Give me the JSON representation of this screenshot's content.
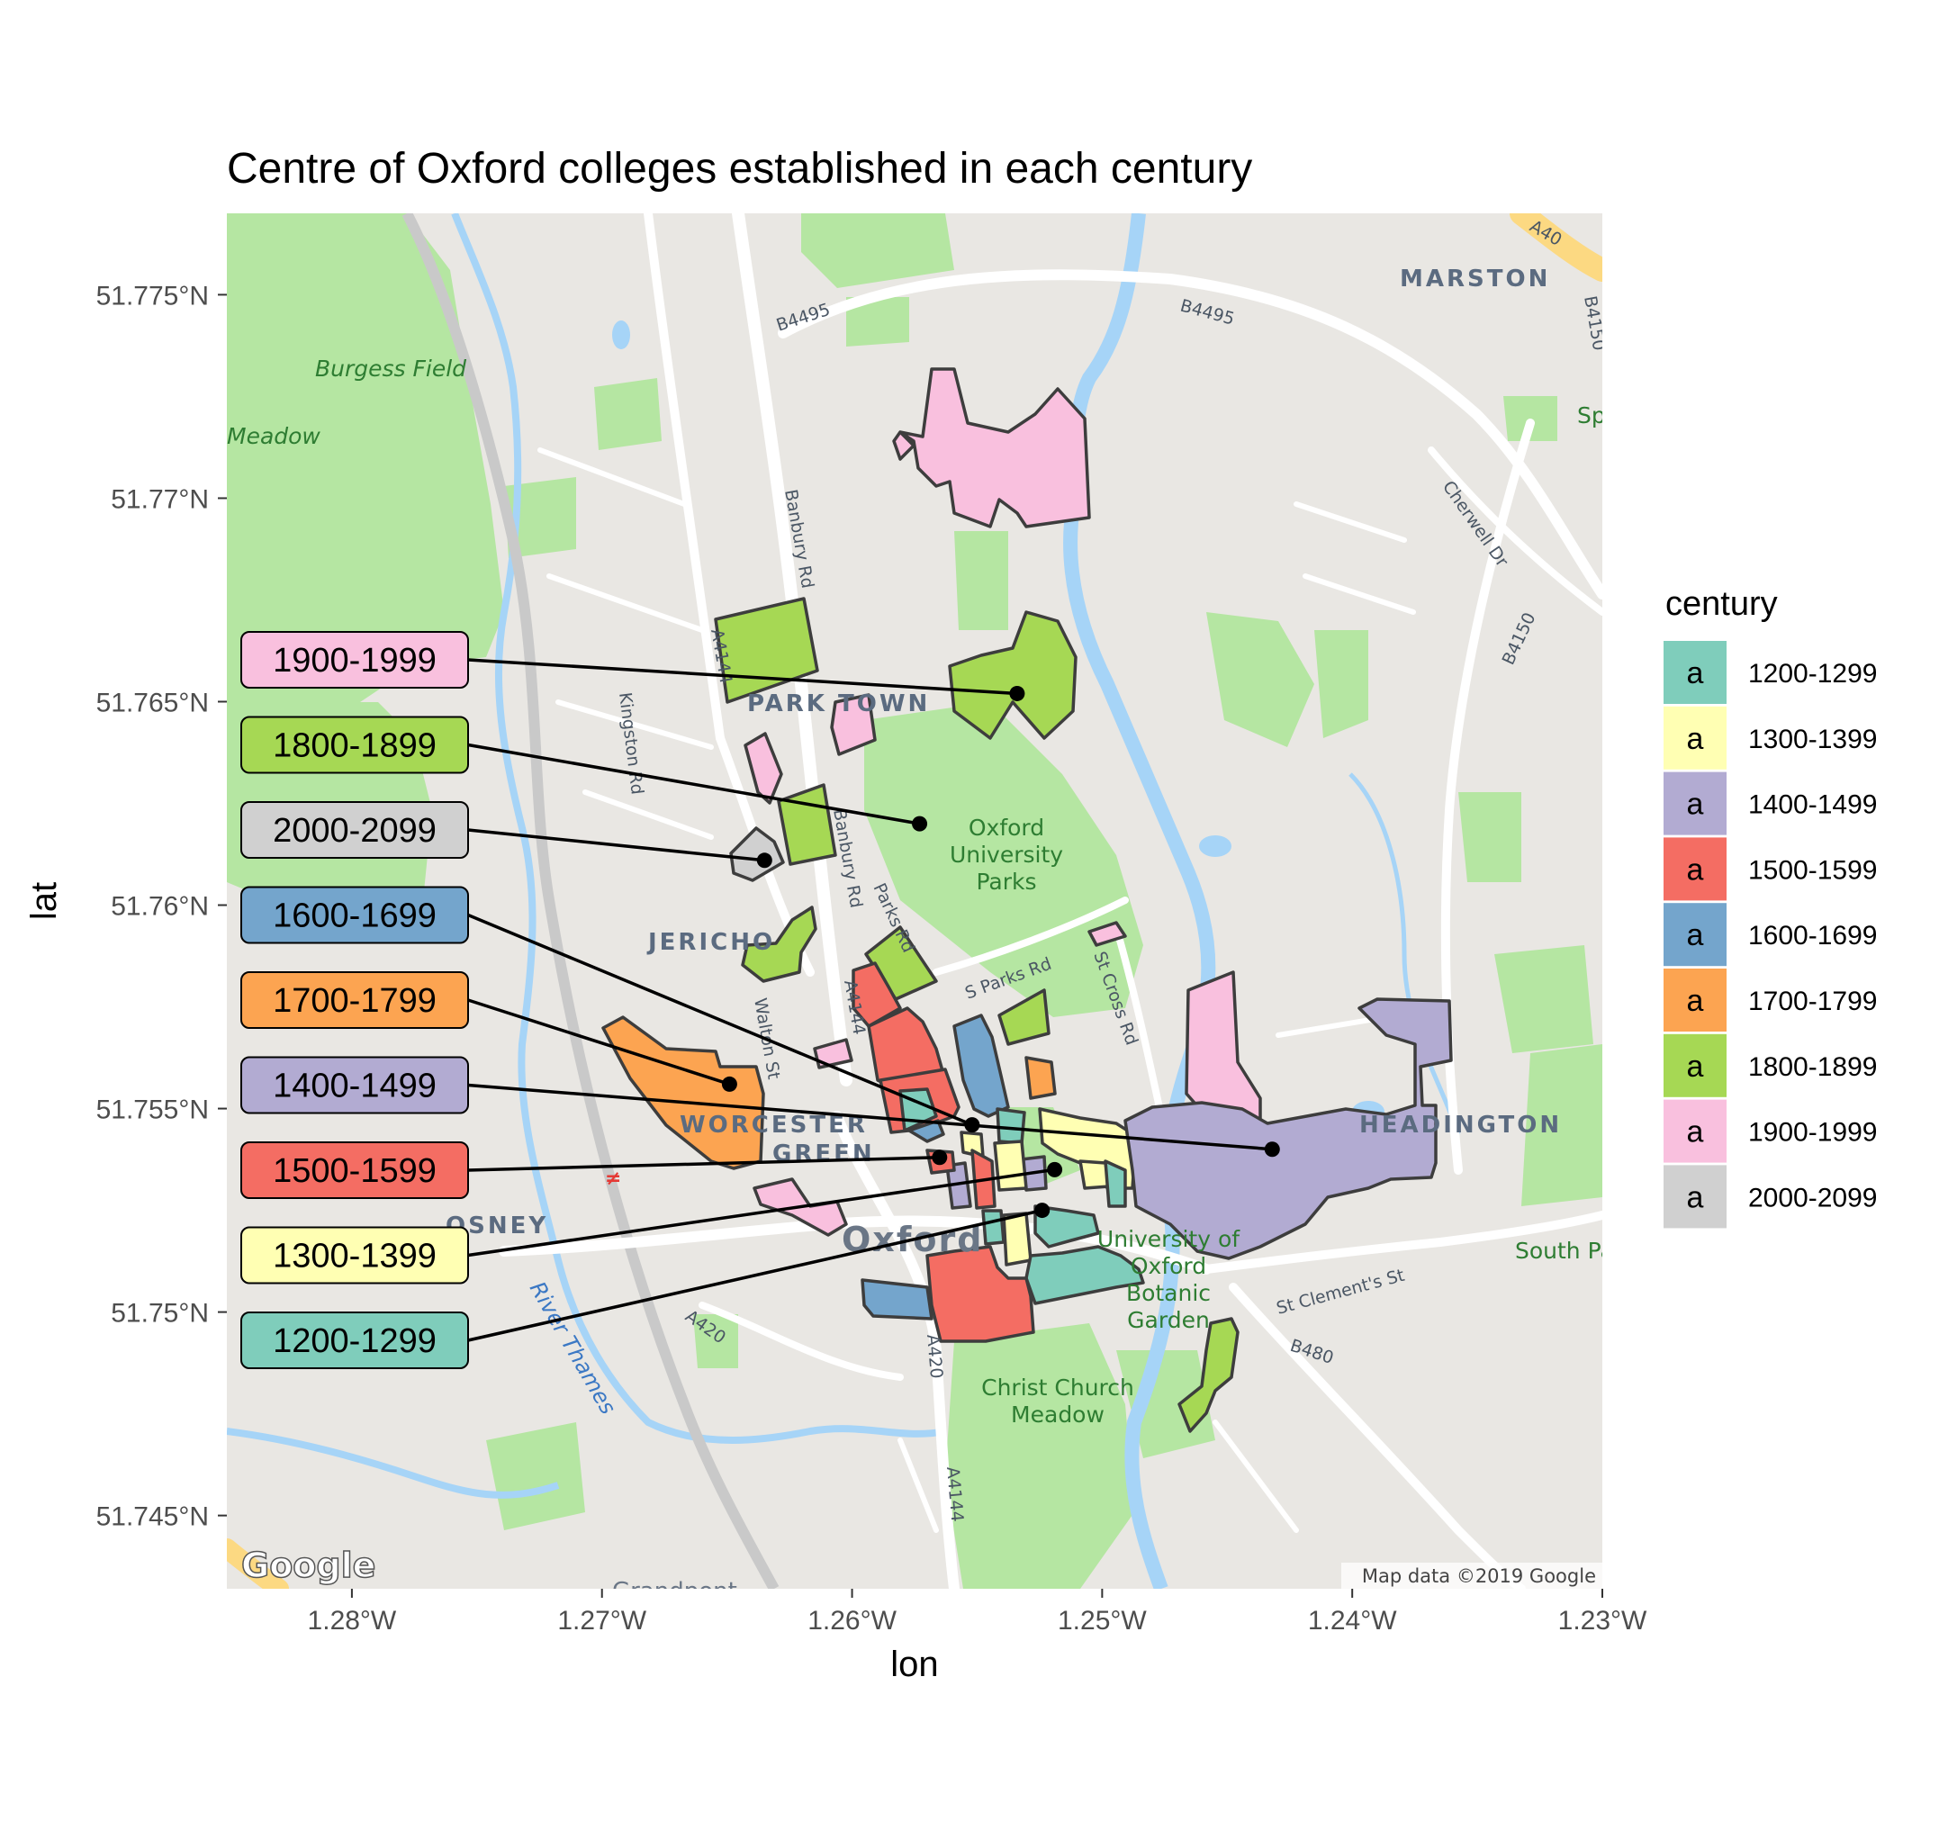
{
  "chart_data": {
    "type": "map",
    "title": "Centre of Oxford colleges established in each century",
    "xlabel": "lon",
    "ylabel": "lat",
    "xlim": [
      -1.285,
      -1.23
    ],
    "ylim": [
      51.7432,
      51.777
    ],
    "x_ticks": [
      {
        "value": -1.28,
        "label": "1.28°W"
      },
      {
        "value": -1.27,
        "label": "1.27°W"
      },
      {
        "value": -1.26,
        "label": "1.26°W"
      },
      {
        "value": -1.25,
        "label": "1.25°W"
      },
      {
        "value": -1.24,
        "label": "1.24°W"
      },
      {
        "value": -1.23,
        "label": "1.23°W"
      }
    ],
    "y_ticks": [
      {
        "value": 51.745,
        "label": "51.745°N"
      },
      {
        "value": 51.75,
        "label": "51.75°N"
      },
      {
        "value": 51.755,
        "label": "51.755°N"
      },
      {
        "value": 51.76,
        "label": "51.76°N"
      },
      {
        "value": 51.765,
        "label": "51.765°N"
      },
      {
        "value": 51.77,
        "label": "51.77°N"
      },
      {
        "value": 51.775,
        "label": "51.775°N"
      }
    ],
    "legend": {
      "title": "century",
      "position": "right",
      "key_glyph": "a",
      "items": [
        {
          "label": "1200-1299",
          "color": "#7fcdbb"
        },
        {
          "label": "1300-1399",
          "color": "#ffffb3"
        },
        {
          "label": "1400-1499",
          "color": "#b2abd2"
        },
        {
          "label": "1500-1599",
          "color": "#f46d63"
        },
        {
          "label": "1600-1699",
          "color": "#74a5cc"
        },
        {
          "label": "1700-1799",
          "color": "#fca451"
        },
        {
          "label": "1800-1899",
          "color": "#a6d854"
        },
        {
          "label": "1900-1999",
          "color": "#f9c0de"
        },
        {
          "label": "2000-2099",
          "color": "#d0d0d0"
        }
      ]
    },
    "centres": [
      {
        "century": "1900-1999",
        "lon": -1.2534,
        "lat": 51.7652
      },
      {
        "century": "1800-1899",
        "lon": -1.2573,
        "lat": 51.762
      },
      {
        "century": "2000-2099",
        "lon": -1.2635,
        "lat": 51.7611
      },
      {
        "century": "1600-1699",
        "lon": -1.2552,
        "lat": 51.7546
      },
      {
        "century": "1700-1799",
        "lon": -1.2649,
        "lat": 51.7556
      },
      {
        "century": "1400-1499",
        "lon": -1.2432,
        "lat": 51.754
      },
      {
        "century": "1500-1599",
        "lon": -1.2565,
        "lat": 51.7538
      },
      {
        "century": "1300-1399",
        "lon": -1.2519,
        "lat": 51.7535
      },
      {
        "century": "1200-1299",
        "lon": -1.2524,
        "lat": 51.7525
      }
    ],
    "label_order": [
      "1900-1999",
      "1800-1899",
      "2000-2099",
      "1600-1699",
      "1700-1799",
      "1400-1499",
      "1500-1599",
      "1300-1399",
      "1200-1299"
    ],
    "basemap": {
      "attribution": "Map data ©2019 Google",
      "logo": "Google",
      "place_labels": [
        {
          "text": "MARSTON",
          "lon": -1.2415,
          "lat": 51.7754,
          "kind": "area"
        },
        {
          "text": "PARK TOWN",
          "lon": -1.2604,
          "lat": 51.7651,
          "kind": "area"
        },
        {
          "text": "JERICHO",
          "lon": -1.2665,
          "lat": 51.7593,
          "kind": "area"
        },
        {
          "text": "WORCESTER",
          "lon": -1.2643,
          "lat": 51.7545,
          "kind": "area"
        },
        {
          "text": "GREEN",
          "lon": -1.2635,
          "lat": 51.7533,
          "kind": "area"
        },
        {
          "text": "OSNEY",
          "lon": -1.2744,
          "lat": 51.7521,
          "kind": "area"
        },
        {
          "text": "HEADINGTON",
          "lon": -1.2362,
          "lat": 51.7545,
          "kind": "area"
        },
        {
          "text": "Oxford",
          "lon": -1.2577,
          "lat": 51.7518,
          "kind": "city"
        },
        {
          "text": "Burgess Field",
          "lon": -1.2779,
          "lat": 51.7733,
          "kind": "park"
        },
        {
          "text": "Meadow",
          "lon": -1.2835,
          "lat": 51.7716,
          "kind": "park"
        },
        {
          "text": "Oxford University Parks",
          "lon": -1.2544,
          "lat": 51.7612,
          "kind": "park"
        },
        {
          "text": "University of Oxford Botanic Garden",
          "lon": -1.2488,
          "lat": 51.7505,
          "kind": "park"
        },
        {
          "text": "Christ Church Meadow",
          "lon": -1.2535,
          "lat": 51.7478,
          "kind": "park"
        },
        {
          "text": "South Park",
          "lon": -1.2335,
          "lat": 51.7515,
          "kind": "park"
        },
        {
          "text": "Spo",
          "lon": -1.2307,
          "lat": 51.7721,
          "kind": "park"
        },
        {
          "text": "River Thames",
          "lon": -1.2715,
          "lat": 51.7492,
          "kind": "water"
        }
      ],
      "road_labels": [
        "B4495",
        "B4495",
        "B4150",
        "B4150",
        "Cherwell Dr",
        "Banbury Rd",
        "Banbury Rd",
        "A4144",
        "A4144",
        "A4144",
        "A4144",
        "Kingston Rd",
        "Walton St",
        "Parks Rd",
        "S Parks Rd",
        "St Cross Rd",
        "St Clement's St",
        "B480",
        "A420",
        "A420",
        "A40"
      ]
    }
  }
}
